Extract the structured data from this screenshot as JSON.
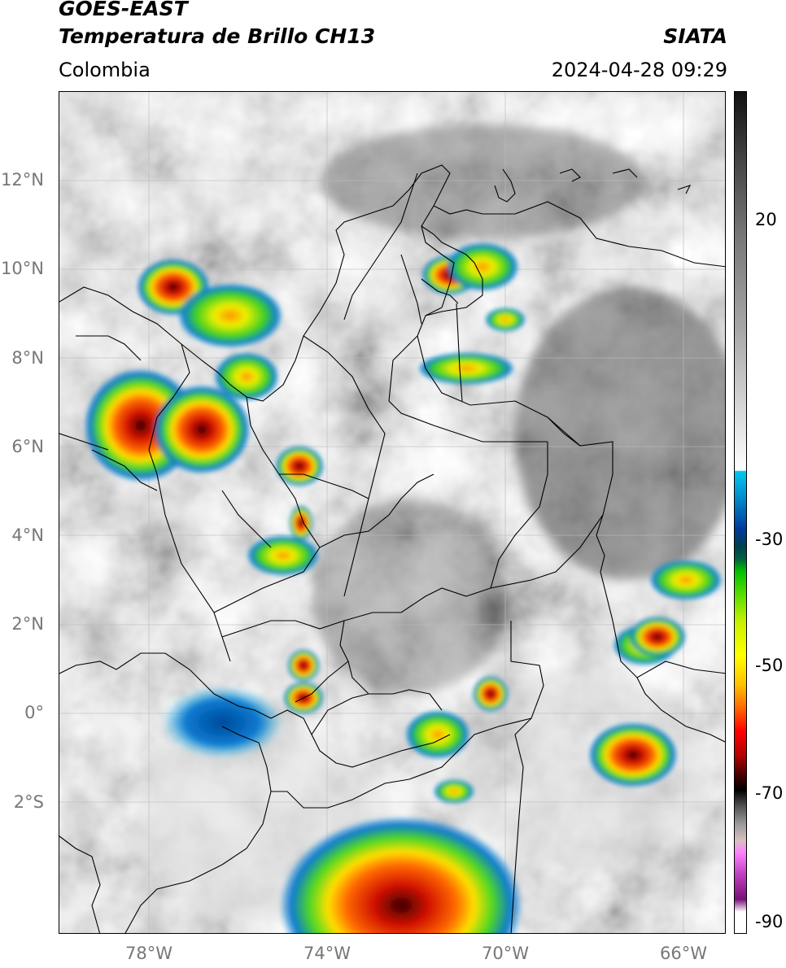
{
  "header": {
    "title_line1": "GOES-EAST",
    "title_line2": "Temperatura de Brillo CH13",
    "organization": "SIATA",
    "region": "Colombia",
    "datetime": "2024-04-28 09:29"
  },
  "map": {
    "lat_labels": [
      "12°N",
      "10°N",
      "8°N",
      "6°N",
      "4°N",
      "2°N",
      "0°",
      "2°S"
    ],
    "lon_labels": [
      "78°W",
      "74°W",
      "70°W",
      "66°W"
    ],
    "colors": {
      "background_gray": "#8c8c8c",
      "cloud_white": "#e8e8e8",
      "deep_convection_green": "#40d020",
      "core_red": "#e01000"
    }
  },
  "colorbar": {
    "ticks": [
      "20",
      "-30",
      "-50",
      "-70",
      "-90"
    ]
  }
}
